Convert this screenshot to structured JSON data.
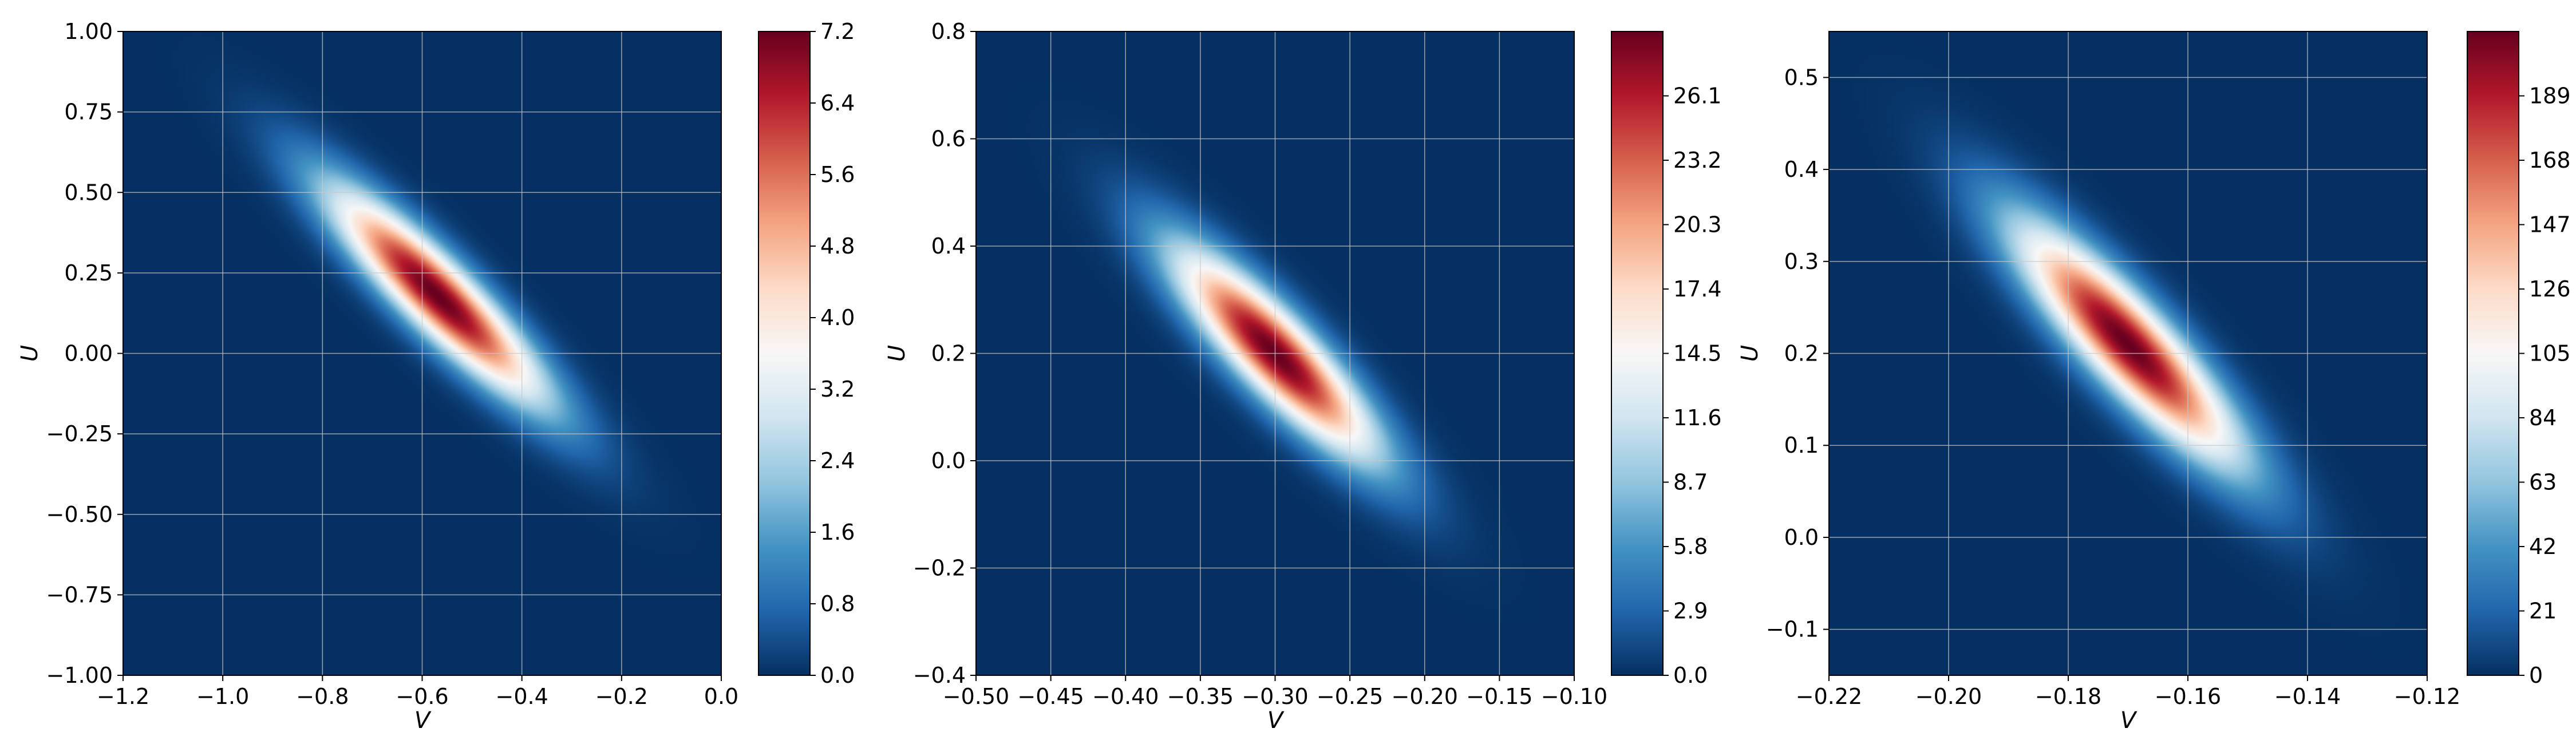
{
  "chart_data": [
    {
      "type": "heatmap",
      "xlabel": "V",
      "ylabel": "U",
      "xlim": [
        -1.2,
        0.0
      ],
      "ylim": [
        -1.0,
        1.0
      ],
      "xticks": [
        -1.2,
        -1.0,
        -0.8,
        -0.6,
        -0.4,
        -0.2,
        0.0
      ],
      "xtick_labels": [
        "−1.2",
        "−1.0",
        "−0.8",
        "−0.6",
        "−0.4",
        "−0.2",
        "0.0"
      ],
      "yticks": [
        -1.0,
        -0.75,
        -0.5,
        -0.25,
        0.0,
        0.25,
        0.5,
        0.75,
        1.0
      ],
      "ytick_labels": [
        "−1.00",
        "−0.75",
        "−0.50",
        "−0.25",
        "0.00",
        "0.25",
        "0.50",
        "0.75",
        "1.00"
      ],
      "colorbar": {
        "range": [
          0,
          7.2
        ],
        "ticks": [
          0.0,
          0.8,
          1.6,
          2.4,
          3.2,
          4.0,
          4.8,
          5.6,
          6.4,
          7.2
        ],
        "tick_labels": [
          "0.0",
          "0.8",
          "1.6",
          "2.4",
          "3.2",
          "4.0",
          "4.8",
          "5.6",
          "6.4",
          "7.2"
        ]
      },
      "density": {
        "peak": 7.2,
        "mean_v": -0.57,
        "mean_u": 0.18,
        "sd_v": 0.15,
        "sd_u": 0.23,
        "corr": -0.9
      },
      "grid": true
    },
    {
      "type": "heatmap",
      "xlabel": "V",
      "ylabel": "U",
      "xlim": [
        -0.5,
        -0.1
      ],
      "ylim": [
        -0.4,
        0.8
      ],
      "xticks": [
        -0.5,
        -0.45,
        -0.4,
        -0.35,
        -0.3,
        -0.25,
        -0.2,
        -0.15,
        -0.1
      ],
      "xtick_labels": [
        "−0.50",
        "−0.45",
        "−0.40",
        "−0.35",
        "−0.30",
        "−0.25",
        "−0.20",
        "−0.15",
        "−0.10"
      ],
      "yticks": [
        -0.4,
        -0.2,
        0.0,
        0.2,
        0.4,
        0.6,
        0.8
      ],
      "ytick_labels": [
        "−0.4",
        "−0.2",
        "0.0",
        "0.2",
        "0.4",
        "0.6",
        "0.8"
      ],
      "colorbar": {
        "range": [
          0,
          29.0
        ],
        "ticks": [
          0.0,
          2.9,
          5.8,
          8.7,
          11.6,
          14.5,
          17.4,
          20.3,
          23.2,
          26.1
        ],
        "tick_labels": [
          "0.0",
          "2.9",
          "5.8",
          "8.7",
          "11.6",
          "14.5",
          "17.4",
          "20.3",
          "23.2",
          "26.1"
        ]
      },
      "density": {
        "peak": 29.0,
        "mean_v": -0.3,
        "mean_u": 0.2,
        "sd_v": 0.047,
        "sd_u": 0.135,
        "corr": -0.87
      },
      "grid": true
    },
    {
      "type": "heatmap",
      "xlabel": "V",
      "ylabel": "U",
      "xlim": [
        -0.22,
        -0.12
      ],
      "ylim": [
        -0.15,
        0.55
      ],
      "xticks": [
        -0.22,
        -0.2,
        -0.18,
        -0.16,
        -0.14,
        -0.12
      ],
      "xtick_labels": [
        "−0.22",
        "−0.20",
        "−0.18",
        "−0.16",
        "−0.14",
        "−0.12"
      ],
      "yticks": [
        -0.1,
        0.0,
        0.1,
        0.2,
        0.3,
        0.4,
        0.5
      ],
      "ytick_labels": [
        "−0.1",
        "0.0",
        "0.1",
        "0.2",
        "0.3",
        "0.4",
        "0.5"
      ],
      "colorbar": {
        "range": [
          0,
          210
        ],
        "ticks": [
          0,
          21,
          42,
          63,
          84,
          105,
          126,
          147,
          168,
          189
        ],
        "tick_labels": [
          "0",
          "21",
          "42",
          "63",
          "84",
          "105",
          "126",
          "147",
          "168",
          "189"
        ]
      },
      "density": {
        "peak": 210,
        "mean_v": -0.17,
        "mean_u": 0.21,
        "sd_v": 0.013,
        "sd_u": 0.09,
        "corr": -0.88
      },
      "grid": true
    }
  ],
  "colors": {
    "colormap": "RdBu_r",
    "stops": [
      "#053061",
      "#2166ac",
      "#4393c3",
      "#92c5de",
      "#d1e5f0",
      "#f7f7f7",
      "#fddbc7",
      "#f4a582",
      "#d6604d",
      "#b2182b",
      "#67001f"
    ],
    "grid": "#c8c8c8",
    "axis": "#000000"
  }
}
